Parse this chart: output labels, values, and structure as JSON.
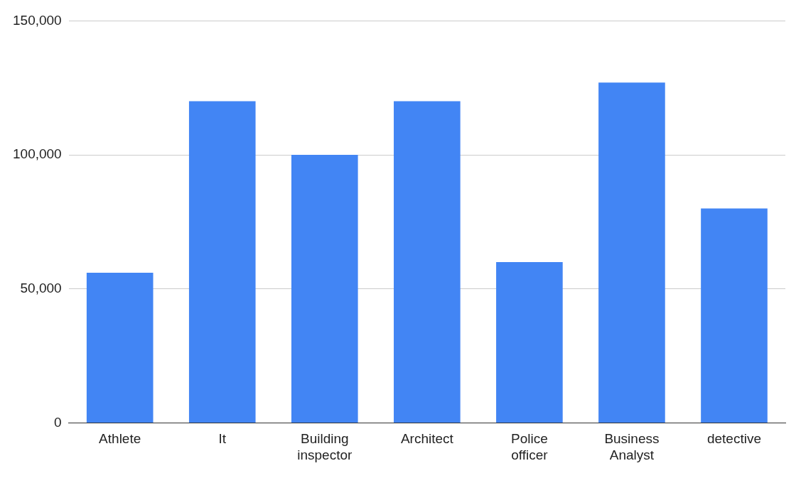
{
  "chart_data": {
    "type": "bar",
    "categories": [
      "Athlete",
      "It",
      "Building inspector",
      "Architect",
      "Police officer",
      "Business Analyst",
      "detective"
    ],
    "series": [
      {
        "color": "#4285f4",
        "values": [
          56000,
          120000,
          100000,
          120000,
          60000,
          127000,
          80000
        ]
      }
    ],
    "ylim": [
      0,
      150000
    ],
    "yticks": [
      {
        "value": 0,
        "label": "0"
      },
      {
        "value": 50000,
        "label": "50,000"
      },
      {
        "value": 100000,
        "label": "100,000"
      },
      {
        "value": 150000,
        "label": "150,000"
      }
    ],
    "grid": "y",
    "legend": false
  }
}
